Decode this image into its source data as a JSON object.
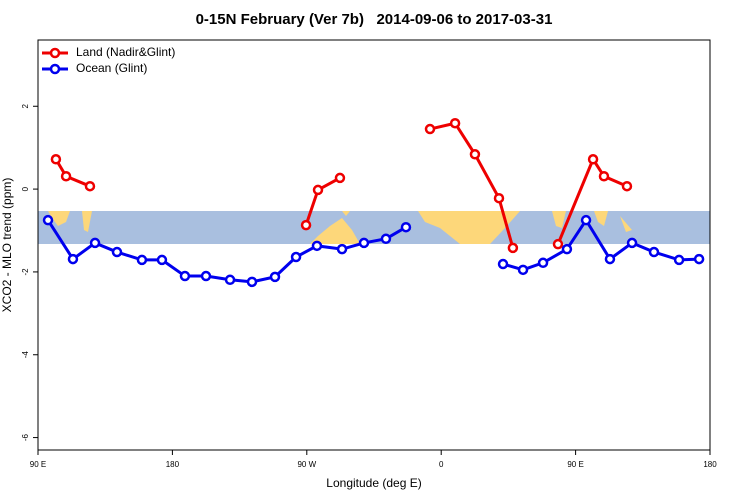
{
  "chart_data": {
    "type": "line",
    "title": "0-15N February (Ver 7b)   2014-09-06 to 2017-03-31",
    "xlabel": "Longitude (deg E)",
    "ylabel": "XCO2 - MLO trend (ppm)",
    "xlim": [
      90,
      540
    ],
    "xticks": [
      {
        "value": 90,
        "label": "90 E"
      },
      180,
      {
        "value": 270,
        "label": "90 W"
      },
      {
        "value": 360,
        "label": "0"
      },
      {
        "value": 450,
        "label": "90 E"
      },
      {
        "value": 540,
        "label": "180"
      }
    ],
    "ylim": [
      -6.3,
      3.6
    ],
    "yticks": [
      2,
      0,
      -2,
      -4,
      -6
    ],
    "legend": "topleft",
    "series": [
      {
        "name": "Land (Nadir&Glint)",
        "color": "#ee0000",
        "x": [
          102,
          108.8,
          124.8,
          null,
          269.5,
          277.5,
          292.2,
          null,
          352.5,
          369.3,
          382.6,
          398.7,
          408,
          null,
          438.2,
          461.7,
          469,
          484.4
        ],
        "values": [
          0.72,
          0.31,
          0.07,
          null,
          -0.87,
          -0.02,
          0.27,
          null,
          1.45,
          1.59,
          0.84,
          -0.22,
          -1.42,
          null,
          -1.33,
          0.72,
          0.31,
          0.07
        ]
      },
      {
        "name": "Ocean (Glint)",
        "color": "#0000ee",
        "x": [
          96.7,
          113.4,
          128.2,
          142.9,
          159.6,
          173,
          188.4,
          202.5,
          218.6,
          233.3,
          248.7,
          262.8,
          276.8,
          293.6,
          308.3,
          323,
          336.4,
          null,
          401.4,
          414.8,
          428.2,
          444.2,
          457,
          473,
          487.8,
          502.5,
          519.3,
          532.7
        ],
        "values": [
          -0.75,
          -1.69,
          -1.3,
          -1.52,
          -1.71,
          -1.71,
          -2.1,
          -2.1,
          -2.19,
          -2.24,
          -2.12,
          -1.64,
          -1.37,
          -1.45,
          -1.3,
          -1.2,
          -0.92,
          null,
          -1.81,
          -1.95,
          -1.78,
          -1.45,
          -0.75,
          -1.69,
          -1.3,
          -1.52,
          -1.71,
          -1.69
        ]
      }
    ]
  }
}
